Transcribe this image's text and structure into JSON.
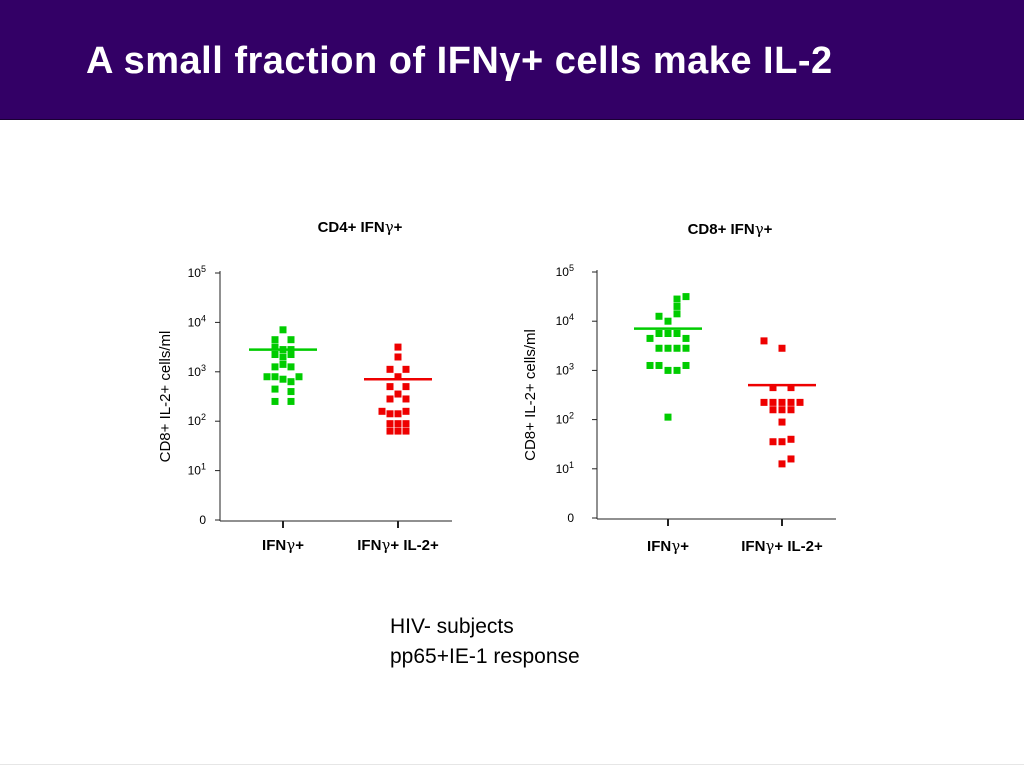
{
  "slide": {
    "title": "A small fraction of IFNγ+ cells make IL-2",
    "caption_line1": "HIV- subjects",
    "caption_line2": "pp65+IE-1 response"
  },
  "colors": {
    "banner": "#330066",
    "ifng": "#00cc00",
    "il2": "#ee0000"
  },
  "chart_data": [
    {
      "type": "scatter",
      "title": "CD4+ IFNγ+",
      "xlabel": "",
      "ylabel": "CD8+ IL-2+ cells/ml",
      "y_scale": "log",
      "y_ticks": [
        {
          "value": 0,
          "label": "0"
        },
        {
          "value": 1,
          "label": "10¹"
        },
        {
          "value": 2,
          "label": "10²"
        },
        {
          "value": 3,
          "label": "10³"
        },
        {
          "value": 4,
          "label": "10⁴"
        },
        {
          "value": 5,
          "label": "10⁵"
        }
      ],
      "categories": [
        "IFNγ+",
        "IFNγ+ IL-2+"
      ],
      "series": [
        {
          "category": "IFNγ+",
          "color": "#00cc00",
          "median_log10": 3.45,
          "points": [
            {
              "x": 0,
              "log10": 3.85
            },
            {
              "x": -1,
              "log10": 3.65
            },
            {
              "x": 1,
              "log10": 3.65
            },
            {
              "x": -1,
              "log10": 3.5
            },
            {
              "x": 0,
              "log10": 3.45
            },
            {
              "x": 1,
              "log10": 3.45
            },
            {
              "x": -1,
              "log10": 3.35
            },
            {
              "x": 0,
              "log10": 3.3
            },
            {
              "x": 1,
              "log10": 3.35
            },
            {
              "x": 0,
              "log10": 3.15
            },
            {
              "x": -1,
              "log10": 3.1
            },
            {
              "x": 1,
              "log10": 3.1
            },
            {
              "x": -2,
              "log10": 2.9
            },
            {
              "x": -1,
              "log10": 2.9
            },
            {
              "x": 0,
              "log10": 2.85
            },
            {
              "x": 1,
              "log10": 2.8
            },
            {
              "x": 2,
              "log10": 2.9
            },
            {
              "x": -1,
              "log10": 2.65
            },
            {
              "x": 1,
              "log10": 2.6
            },
            {
              "x": -1,
              "log10": 2.4
            },
            {
              "x": 1,
              "log10": 2.4
            }
          ]
        },
        {
          "category": "IFNγ+ IL-2+",
          "color": "#ee0000",
          "median_log10": 2.85,
          "points": [
            {
              "x": 0,
              "log10": 3.5
            },
            {
              "x": 0,
              "log10": 3.3
            },
            {
              "x": -1,
              "log10": 3.05
            },
            {
              "x": 1,
              "log10": 3.05
            },
            {
              "x": 0,
              "log10": 2.9
            },
            {
              "x": -1,
              "log10": 2.7
            },
            {
              "x": 1,
              "log10": 2.7
            },
            {
              "x": 0,
              "log10": 2.55
            },
            {
              "x": -1,
              "log10": 2.45
            },
            {
              "x": 1,
              "log10": 2.45
            },
            {
              "x": -2,
              "log10": 2.2
            },
            {
              "x": -1,
              "log10": 2.15
            },
            {
              "x": 0,
              "log10": 2.15
            },
            {
              "x": 1,
              "log10": 2.2
            },
            {
              "x": -1,
              "log10": 1.95
            },
            {
              "x": 0,
              "log10": 1.95
            },
            {
              "x": 1,
              "log10": 1.95
            },
            {
              "x": -1,
              "log10": 1.8
            },
            {
              "x": 0,
              "log10": 1.8
            },
            {
              "x": 1,
              "log10": 1.8
            }
          ]
        }
      ]
    },
    {
      "type": "scatter",
      "title": "CD8+ IFNγ+",
      "xlabel": "",
      "ylabel": "CD8+ IL-2+ cells/ml",
      "y_scale": "log",
      "y_ticks": [
        {
          "value": 0,
          "label": "0"
        },
        {
          "value": 1,
          "label": "10¹"
        },
        {
          "value": 2,
          "label": "10²"
        },
        {
          "value": 3,
          "label": "10³"
        },
        {
          "value": 4,
          "label": "10⁴"
        },
        {
          "value": 5,
          "label": "10⁵"
        }
      ],
      "categories": [
        "IFNγ+",
        "IFNγ+ IL-2+"
      ],
      "series": [
        {
          "category": "IFNγ+",
          "color": "#00cc00",
          "median_log10": 3.85,
          "points": [
            {
              "x": 1,
              "log10": 4.45
            },
            {
              "x": 2,
              "log10": 4.5
            },
            {
              "x": 1,
              "log10": 4.3
            },
            {
              "x": -1,
              "log10": 4.1
            },
            {
              "x": 0,
              "log10": 4.0
            },
            {
              "x": 1,
              "log10": 4.15
            },
            {
              "x": -1,
              "log10": 3.75
            },
            {
              "x": 0,
              "log10": 3.75
            },
            {
              "x": 1,
              "log10": 3.75
            },
            {
              "x": -2,
              "log10": 3.65
            },
            {
              "x": 2,
              "log10": 3.65
            },
            {
              "x": -1,
              "log10": 3.45
            },
            {
              "x": 0,
              "log10": 3.45
            },
            {
              "x": 1,
              "log10": 3.45
            },
            {
              "x": 2,
              "log10": 3.45
            },
            {
              "x": -2,
              "log10": 3.1
            },
            {
              "x": -1,
              "log10": 3.1
            },
            {
              "x": 0,
              "log10": 3.0
            },
            {
              "x": 1,
              "log10": 3.0
            },
            {
              "x": 2,
              "log10": 3.1
            },
            {
              "x": 0,
              "log10": 2.05
            }
          ]
        },
        {
          "category": "IFNγ+ IL-2+",
          "color": "#ee0000",
          "median_log10": 2.7,
          "points": [
            {
              "x": -2,
              "log10": 3.6
            },
            {
              "x": 0,
              "log10": 3.45
            },
            {
              "x": -1,
              "log10": 2.65
            },
            {
              "x": 1,
              "log10": 2.65
            },
            {
              "x": -2,
              "log10": 2.35
            },
            {
              "x": -1,
              "log10": 2.35
            },
            {
              "x": 0,
              "log10": 2.35
            },
            {
              "x": 1,
              "log10": 2.35
            },
            {
              "x": 2,
              "log10": 2.35
            },
            {
              "x": -1,
              "log10": 2.2
            },
            {
              "x": 0,
              "log10": 2.2
            },
            {
              "x": 1,
              "log10": 2.2
            },
            {
              "x": 0,
              "log10": 1.95
            },
            {
              "x": -1,
              "log10": 1.55
            },
            {
              "x": 0,
              "log10": 1.55
            },
            {
              "x": 1,
              "log10": 1.6
            },
            {
              "x": 1,
              "log10": 1.2
            },
            {
              "x": 0,
              "log10": 1.1
            }
          ]
        }
      ]
    }
  ]
}
